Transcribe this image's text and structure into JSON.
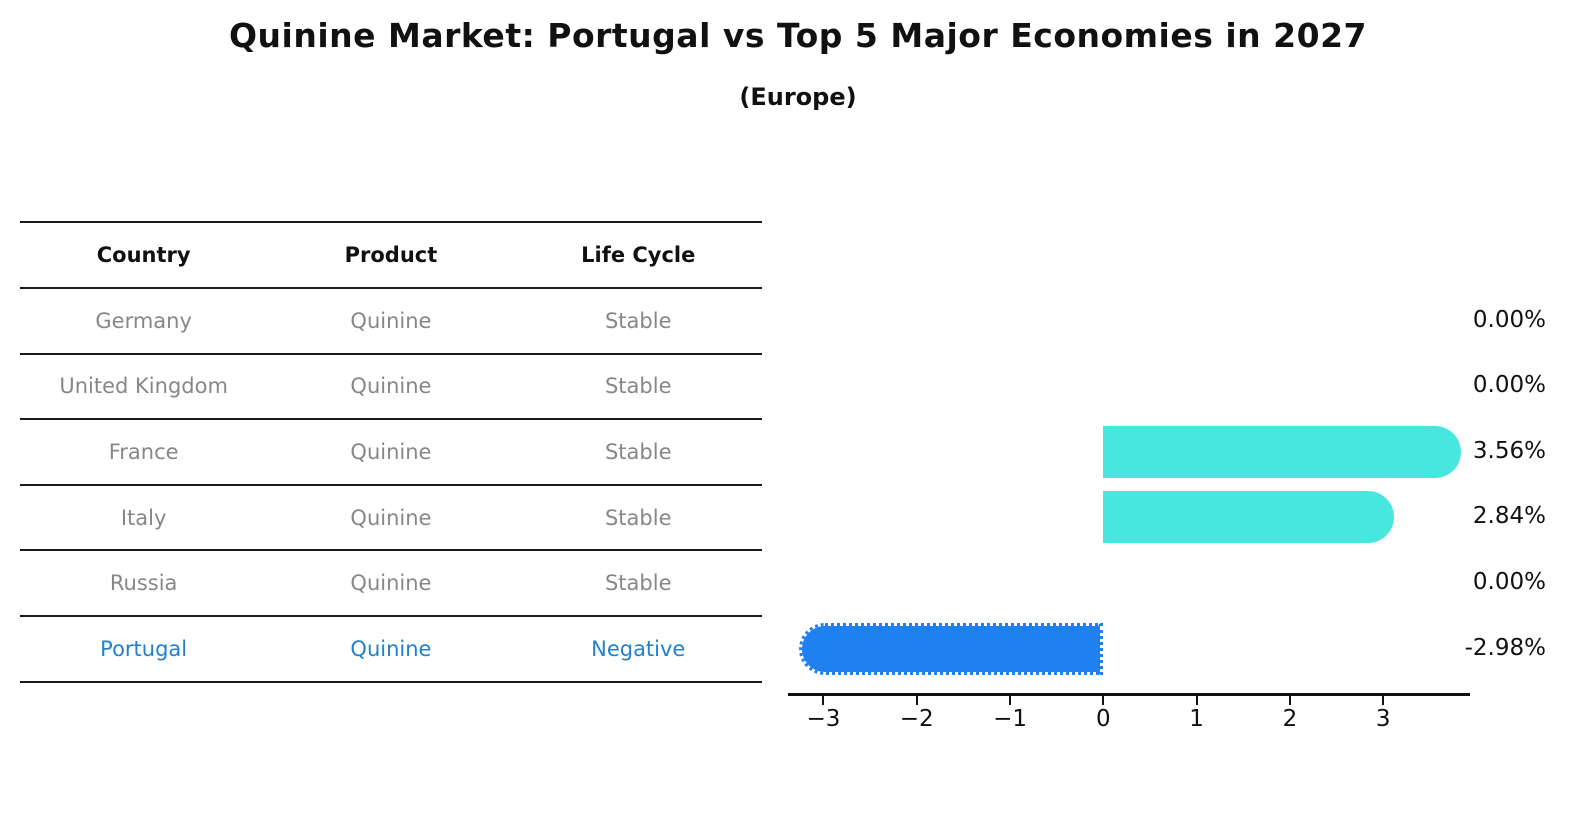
{
  "title": "Quinine Market: Portugal vs Top 5 Major Economies in 2027",
  "subtitle": "(Europe)",
  "table": {
    "headers": {
      "country": "Country",
      "product": "Product",
      "life_cycle": "Life Cycle"
    },
    "rows": [
      {
        "country": "Germany",
        "product": "Quinine",
        "life_cycle": "Stable",
        "highlight": false
      },
      {
        "country": "United Kingdom",
        "product": "Quinine",
        "life_cycle": "Stable",
        "highlight": false
      },
      {
        "country": "France",
        "product": "Quinine",
        "life_cycle": "Stable",
        "highlight": false
      },
      {
        "country": "Italy",
        "product": "Quinine",
        "life_cycle": "Stable",
        "highlight": false
      },
      {
        "country": "Russia",
        "product": "Quinine",
        "life_cycle": "Stable",
        "highlight": false
      },
      {
        "country": "Portugal",
        "product": "Quinine",
        "life_cycle": "Negative",
        "highlight": true
      }
    ]
  },
  "chart_data": {
    "type": "bar",
    "orientation": "horizontal",
    "title": "Quinine Market: Portugal vs Top 5 Major Economies in 2027",
    "subtitle": "(Europe)",
    "categories": [
      "Germany",
      "United Kingdom",
      "France",
      "Italy",
      "Russia",
      "Portugal"
    ],
    "values": [
      0.0,
      0.0,
      3.56,
      2.84,
      0.0,
      -2.98
    ],
    "value_labels": [
      "0.00%",
      "0.00%",
      "3.56%",
      "2.84%",
      "0.00%",
      "-2.98%"
    ],
    "xticks": [
      -3,
      -2,
      -1,
      0,
      1,
      2,
      3
    ],
    "xtick_labels": [
      "−3",
      "−2",
      "−1",
      "0",
      "1",
      "2",
      "3"
    ],
    "xlim": [
      -3.38,
      3.93
    ],
    "grid": false,
    "legend": false,
    "colors": {
      "positive_bar": "#47e7df",
      "negative_bar": "#2080f0",
      "highlight_text": "#2280cc",
      "axis": "#111111"
    },
    "negative_bar_style": "dotted-edge"
  }
}
